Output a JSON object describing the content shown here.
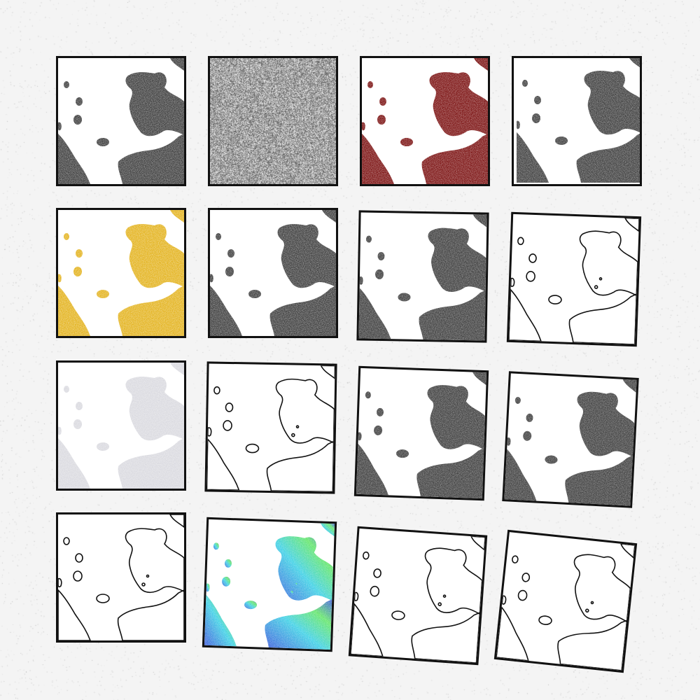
{
  "grid": {
    "rows": 4,
    "cols": 4
  },
  "colors": {
    "background": "#f4f4f4",
    "tile_background": "#ffffff",
    "tile_border": "#111111",
    "gray_fill": "#3c3c3c",
    "red_fill": "#7a0f0f",
    "yellow_fill": "#e3b21c",
    "pale_fill": "#d9d9df",
    "noise_light": "#c8c8c8",
    "noise_dark": "#5a5a5a",
    "viridis_a": "#3b5bdb",
    "viridis_b": "#3fd1e6",
    "viridis_c": "#63e66a"
  },
  "tiles": [
    {
      "style": "gray-fill"
    },
    {
      "style": "noise"
    },
    {
      "style": "red-fill"
    },
    {
      "style": "gray-fill-shifted"
    },
    {
      "style": "yellow-fill"
    },
    {
      "style": "gray-fill"
    },
    {
      "style": "gray-fill"
    },
    {
      "style": "outline"
    },
    {
      "style": "pale-fill"
    },
    {
      "style": "outline"
    },
    {
      "style": "gray-fill"
    },
    {
      "style": "gray-fill"
    },
    {
      "style": "outline"
    },
    {
      "style": "cool-gradient-fill"
    },
    {
      "style": "outline"
    },
    {
      "style": "outline"
    }
  ]
}
